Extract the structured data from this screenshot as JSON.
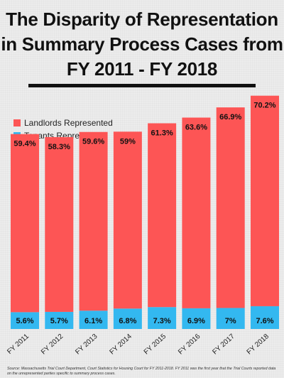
{
  "title_lines": [
    "The Disparity of Representation",
    "in Summary Process Cases from",
    "FY 2011 - FY 2018"
  ],
  "source_note": "Source: Massachusetts Trial Court Department, Court Statistics for Housing Court for FY 2011-2018. FY 2011 was the first year that the Trial Courts reported data on the unrepresented parties specific to summary process cases.",
  "colors": {
    "landlords": "#fd5555",
    "tenants": "#33b8f0",
    "background": "#ececec",
    "text": "#111111"
  },
  "chart_data": {
    "type": "bar",
    "categories": [
      "FY 2011",
      "FY 2012",
      "FY 2013",
      "FY 2014",
      "FY 2015",
      "FY 2016",
      "FY 2017",
      "FY 2018"
    ],
    "series": [
      {
        "name": "Landlords Represented",
        "values": [
          59.4,
          58.3,
          59.6,
          59,
          61.3,
          63.6,
          66.9,
          70.2
        ],
        "labels": [
          "59.4%",
          "58.3%",
          "59.6%",
          "59%",
          "61.3%",
          "63.6%",
          "66.9%",
          "70.2%"
        ]
      },
      {
        "name": "Tenants Represented",
        "values": [
          5.6,
          5.7,
          6.1,
          6.8,
          7.3,
          6.9,
          7,
          7.6
        ],
        "labels": [
          "5.6%",
          "5.7%",
          "6.1%",
          "6.8%",
          "7.3%",
          "6.9%",
          "7%",
          "7.6%"
        ]
      }
    ],
    "stacked": true,
    "legend_position": "top-left",
    "grid": false
  }
}
